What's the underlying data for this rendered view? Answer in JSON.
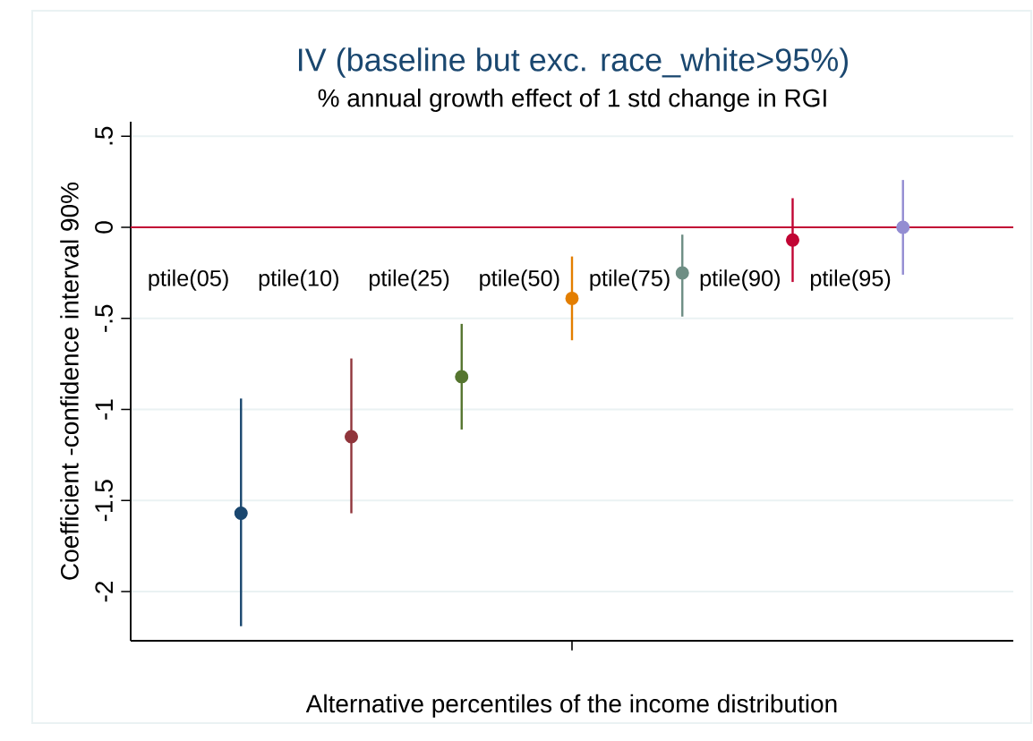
{
  "chart_data": {
    "type": "scatter",
    "title": "IV (baseline but exc. race_white>95%)",
    "subtitle": "% annual growth effect of 1 std change in RGI",
    "xlabel": "Alternative percentiles of the income distribution",
    "ylabel": "Coefficient -confidence interval 90%",
    "categories": [
      null,
      null,
      null,
      null,
      null,
      null,
      null
    ],
    "ylim": [
      -2.27,
      0.58
    ],
    "yticks": [
      {
        "value": 0.5,
        "label": ".5"
      },
      {
        "value": 0,
        "label": "0"
      },
      {
        "value": -0.5,
        "label": "-.5"
      },
      {
        "value": -1,
        "label": "-1"
      },
      {
        "value": -1.5,
        "label": "-1.5"
      },
      {
        "value": -2,
        "label": "-2"
      }
    ],
    "grid": "y",
    "marker": "circle",
    "values": [
      -1.57,
      -1.15,
      -0.82,
      -0.39,
      -0.25,
      -0.07,
      0
    ],
    "colors": [
      "#1a476f",
      "#90353b",
      "#55752f",
      "#e37e00",
      "#6e8e84",
      "#c10534",
      "#938dd2"
    ],
    "errors": [
      [
        -2.19,
        -0.94
      ],
      [
        -1.57,
        -0.72
      ],
      [
        -1.11,
        -0.53
      ],
      [
        -0.62,
        -0.16
      ],
      [
        -0.49,
        -0.04
      ],
      [
        -0.3,
        0.16
      ],
      [
        -0.26,
        0.26
      ]
    ],
    "ref_lines": [
      {
        "axis": "y",
        "value": 0,
        "color": "#c10534"
      }
    ],
    "annotations": [
      "ptile(05)",
      "ptile(10)",
      "ptile(25)",
      "ptile(50)",
      "ptile(75)",
      "ptile(90)",
      "ptile(95)"
    ]
  }
}
